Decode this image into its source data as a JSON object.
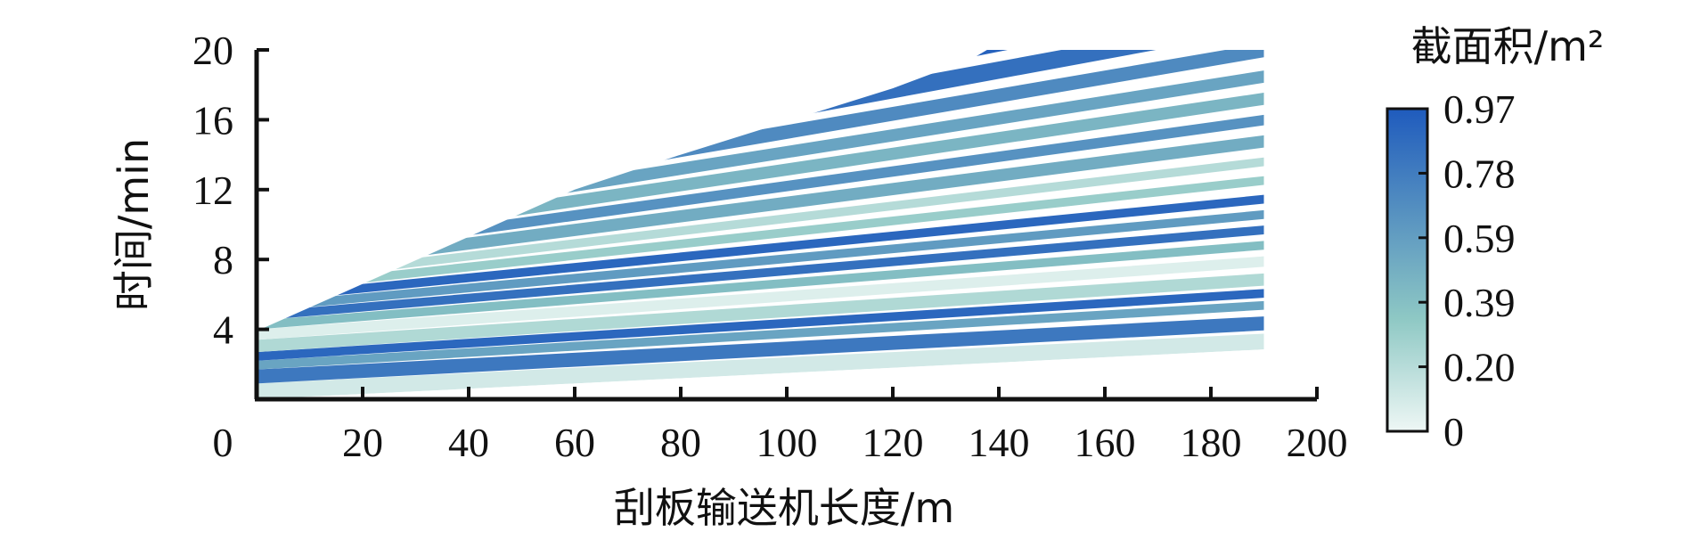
{
  "chart_data": {
    "type": "heatmap",
    "xlabel": "刮板输送机长度/m",
    "ylabel": "时间/min",
    "xlim": [
      0,
      200
    ],
    "ylim": [
      0,
      20
    ],
    "x_ticks": [
      "0",
      "20",
      "40",
      "60",
      "80",
      "100",
      "120",
      "140",
      "160",
      "180",
      "200"
    ],
    "y_ticks": [
      "4",
      "8",
      "12",
      "16",
      "20"
    ],
    "data_extent_x": [
      0,
      190
    ],
    "colorbar": {
      "title": "截面积/m²",
      "min": 0,
      "max": 0.97,
      "ticks": [
        "0.97",
        "0.78",
        "0.59",
        "0.39",
        "0.20",
        "0"
      ],
      "color_low": "#eef7f5",
      "color_mid": "#8ec8c4",
      "color_high": "#1f5bbd"
    },
    "bands": [
      {
        "t0": 0.0,
        "t1": 0.9,
        "slope": 0.015,
        "value": 0.1
      },
      {
        "t0": 0.9,
        "t1": 1.7,
        "slope": 0.016,
        "value": 0.8
      },
      {
        "t0": 1.7,
        "t1": 2.2,
        "slope": 0.018,
        "value": 0.55
      },
      {
        "t0": 2.2,
        "t1": 2.7,
        "slope": 0.019,
        "value": 0.9
      },
      {
        "t0": 2.7,
        "t1": 3.4,
        "slope": 0.02,
        "value": 0.22
      },
      {
        "t0": 3.4,
        "t1": 4.0,
        "slope": 0.022,
        "value": 0.06
      },
      {
        "t0": 4.0,
        "t1": 4.5,
        "slope": 0.024,
        "value": 0.4
      },
      {
        "t0": 4.5,
        "t1": 5.0,
        "slope": 0.026,
        "value": 0.85
      },
      {
        "t0": 5.0,
        "t1": 5.5,
        "slope": 0.028,
        "value": 0.6
      },
      {
        "t0": 5.5,
        "t1": 6.0,
        "slope": 0.03,
        "value": 0.9
      },
      {
        "t0": 6.0,
        "t1": 6.5,
        "slope": 0.033,
        "value": 0.3
      },
      {
        "t0": 6.5,
        "t1": 7.0,
        "slope": 0.036,
        "value": 0.2
      },
      {
        "t0": 7.0,
        "t1": 7.7,
        "slope": 0.039,
        "value": 0.5
      },
      {
        "t0": 7.7,
        "t1": 8.3,
        "slope": 0.042,
        "value": 0.65
      },
      {
        "t0": 8.3,
        "t1": 9.0,
        "slope": 0.045,
        "value": 0.45
      },
      {
        "t0": 9.0,
        "t1": 9.7,
        "slope": 0.048,
        "value": 0.55
      },
      {
        "t0": 9.7,
        "t1": 10.5,
        "slope": 0.052,
        "value": 0.7
      },
      {
        "t0": 10.5,
        "t1": 11.5,
        "slope": 0.056,
        "value": 0.85
      },
      {
        "t0": 11.5,
        "t1": 12.5,
        "slope": 0.06,
        "value": 0.93
      },
      {
        "t0": 12.5,
        "t1": 13.5,
        "slope": 0.063,
        "value": 0.9
      },
      {
        "t0": 13.5,
        "t1": 14.5,
        "slope": 0.066,
        "value": 0.8
      },
      {
        "t0": 14.5,
        "t1": 15.3,
        "slope": 0.068,
        "value": 0.65
      },
      {
        "t0": 15.3,
        "t1": 16.0,
        "slope": 0.07,
        "value": 0.75
      },
      {
        "t0": 16.0,
        "t1": 16.7,
        "slope": 0.072,
        "value": 0.45
      },
      {
        "t0": 16.7,
        "t1": 17.3,
        "slope": 0.074,
        "value": 0.3
      },
      {
        "t0": 17.3,
        "t1": 17.8,
        "slope": 0.076,
        "value": 0.18
      }
    ],
    "envelope": [
      {
        "x": 0,
        "t": 3.9
      },
      {
        "x": 20,
        "t": 6.6
      },
      {
        "x": 40,
        "t": 9.3
      },
      {
        "x": 60,
        "t": 12.0
      },
      {
        "x": 80,
        "t": 14.0
      },
      {
        "x": 100,
        "t": 15.9
      },
      {
        "x": 120,
        "t": 17.8
      },
      {
        "x": 135,
        "t": 19.5
      },
      {
        "x": 140,
        "t": 20.4
      },
      {
        "x": 190,
        "t": 20.4
      }
    ]
  }
}
